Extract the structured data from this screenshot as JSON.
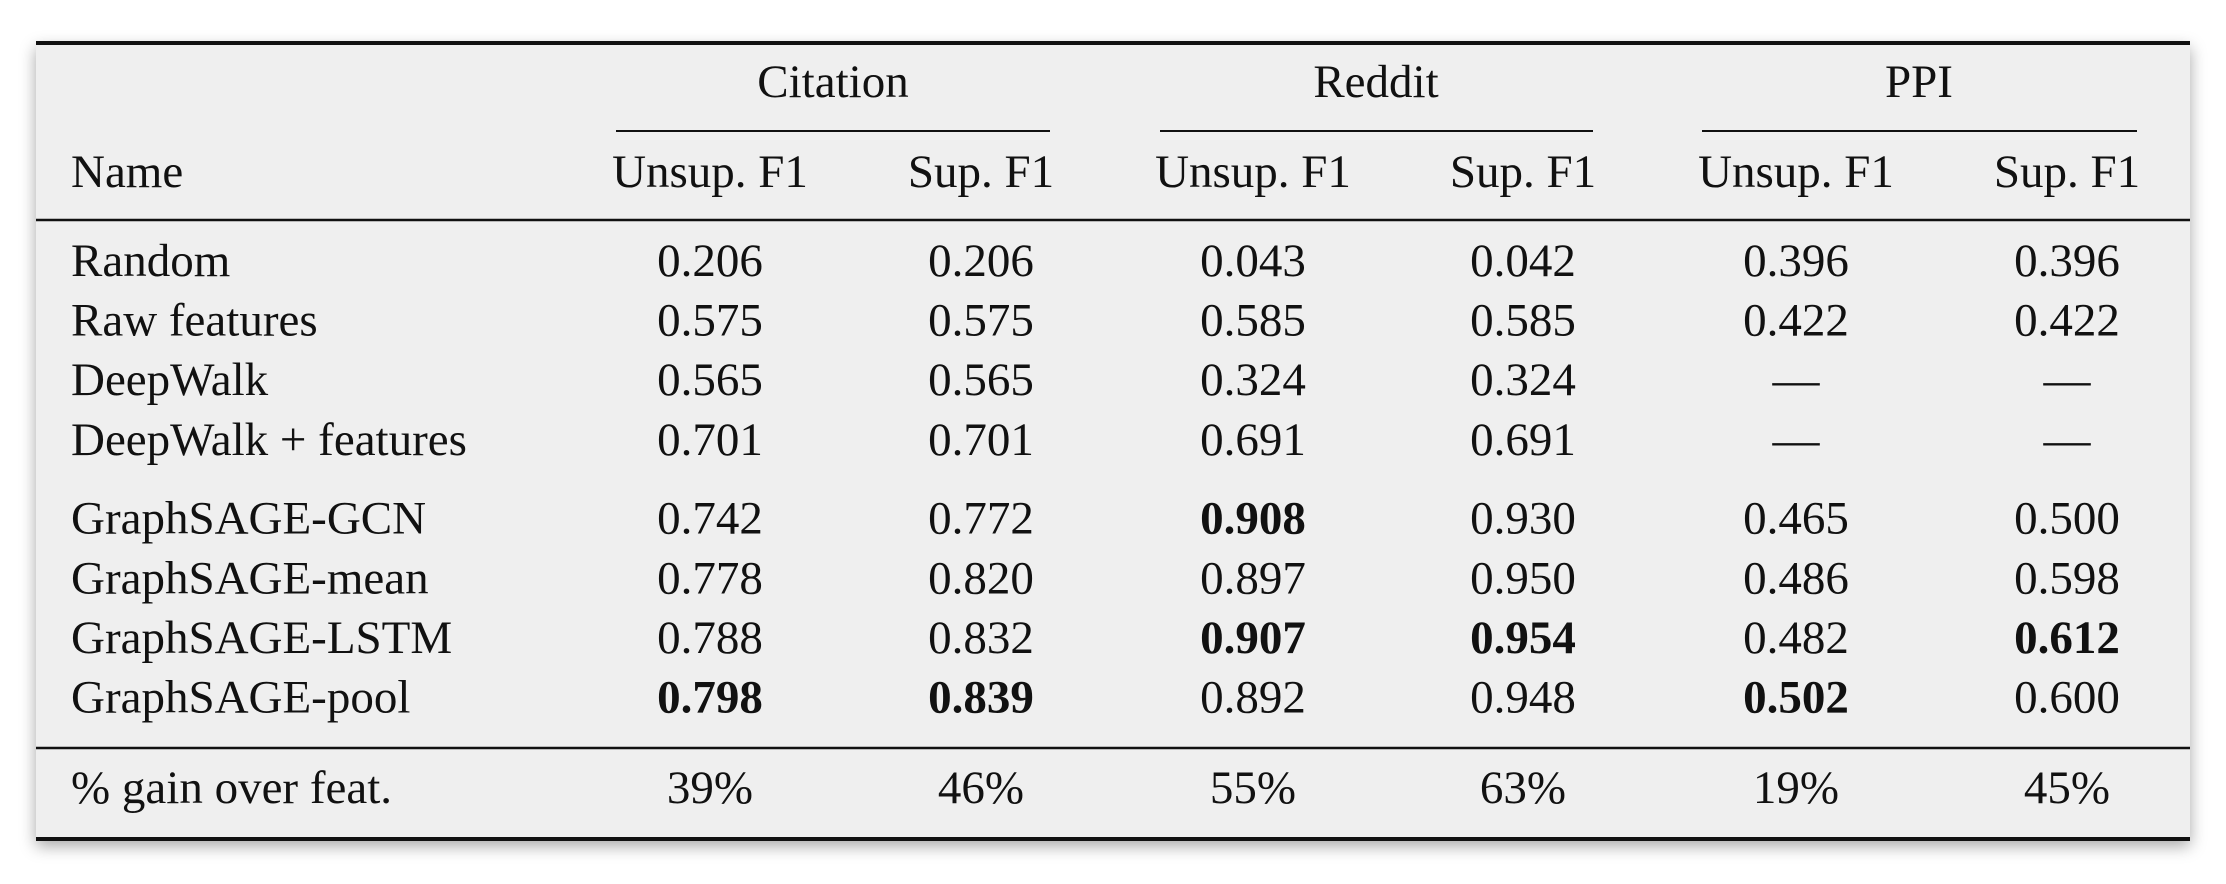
{
  "table": {
    "groups": [
      "Citation",
      "Reddit",
      "PPI"
    ],
    "columns": [
      "Name",
      "Unsup. F1",
      "Sup. F1",
      "Unsup. F1",
      "Sup. F1",
      "Unsup. F1",
      "Sup. F1"
    ],
    "sections": [
      {
        "rows": [
          {
            "name": "Random",
            "cells": [
              "0.206",
              "0.206",
              "0.043",
              "0.042",
              "0.396",
              "0.396"
            ],
            "bold": []
          },
          {
            "name": "Raw features",
            "cells": [
              "0.575",
              "0.575",
              "0.585",
              "0.585",
              "0.422",
              "0.422"
            ],
            "bold": []
          },
          {
            "name": "DeepWalk",
            "cells": [
              "0.565",
              "0.565",
              "0.324",
              "0.324",
              "—",
              "—"
            ],
            "bold": []
          },
          {
            "name": "DeepWalk + features",
            "cells": [
              "0.701",
              "0.701",
              "0.691",
              "0.691",
              "—",
              "—"
            ],
            "bold": []
          }
        ]
      },
      {
        "rows": [
          {
            "name": "GraphSAGE-GCN",
            "cells": [
              "0.742",
              "0.772",
              "0.908",
              "0.930",
              "0.465",
              "0.500"
            ],
            "bold": [
              2
            ]
          },
          {
            "name": "GraphSAGE-mean",
            "cells": [
              "0.778",
              "0.820",
              "0.897",
              "0.950",
              "0.486",
              "0.598"
            ],
            "bold": []
          },
          {
            "name": "GraphSAGE-LSTM",
            "cells": [
              "0.788",
              "0.832",
              "0.907",
              "0.954",
              "0.482",
              "0.612"
            ],
            "bold": [
              2,
              3,
              5
            ]
          },
          {
            "name": "GraphSAGE-pool",
            "cells": [
              "0.798",
              "0.839",
              "0.892",
              "0.948",
              "0.502",
              "0.600"
            ],
            "bold": [
              0,
              1,
              4
            ]
          }
        ]
      }
    ],
    "footer": {
      "name": "% gain over feat.",
      "cells": [
        "39%",
        "46%",
        "55%",
        "63%",
        "19%",
        "45%"
      ]
    }
  }
}
